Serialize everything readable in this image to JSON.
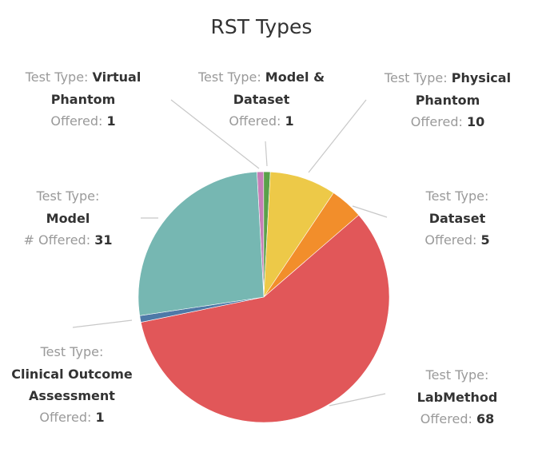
{
  "chart_data": {
    "type": "pie",
    "title": "RST Types",
    "slices": [
      {
        "label": "Test Type: Model & Dataset",
        "value": 1,
        "color": "#c77fb7"
      },
      {
        "label": "Test Type: Virtual Phantom",
        "value": 1,
        "color": "#5aa14a"
      },
      {
        "label": "Test Type: Physical Phantom",
        "value": 10,
        "color": "#edc948"
      },
      {
        "label": "Test Type: Dataset",
        "value": 5,
        "color": "#f28e2b"
      },
      {
        "label": "Test Type: LabMethod",
        "value": 68,
        "color": "#e15759"
      },
      {
        "label": "Test Type: Clinical Outcome Assessment",
        "value": 1,
        "color": "#4e79a7"
      },
      {
        "label": "Test Type: Model",
        "value": 31,
        "color": "#76b7b2"
      }
    ]
  },
  "labels": {
    "virtual_phantom": {
      "prefix": "Test Type: ",
      "name1": "Virtual",
      "name2": "Phantom",
      "count_label": "Offered: ",
      "count": "1"
    },
    "model_dataset": {
      "prefix": "Test Type: ",
      "name1": "Model &",
      "name2": "Dataset",
      "count_label": "Offered: ",
      "count": "1"
    },
    "physical_phantom": {
      "prefix": "Test Type: ",
      "name1": "Physical",
      "name2": "Phantom",
      "count_label": "Offered: ",
      "count": "10"
    },
    "model": {
      "prefix": "Test Type:",
      "name": "Model",
      "count_label": "# Offered: ",
      "count": "31"
    },
    "dataset": {
      "prefix": "Test Type:",
      "name": "Dataset",
      "count_label": "Offered: ",
      "count": "5"
    },
    "clinical": {
      "prefix": "Test Type:",
      "name1": "Clinical Outcome",
      "name2": "Assessment",
      "count_label": "Offered: ",
      "count": "1"
    },
    "labmethod": {
      "prefix": "Test Type:",
      "name": "LabMethod",
      "count_label": "Offered: ",
      "count": "68"
    }
  }
}
